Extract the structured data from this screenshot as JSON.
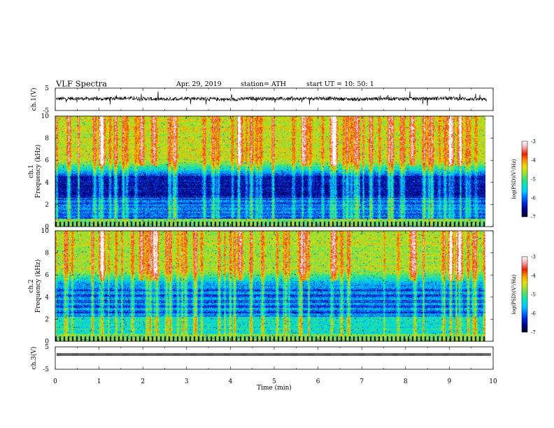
{
  "header": {
    "title": "VLF  Spectra",
    "date": "Apr. 29, 2019",
    "station": "station= ATH",
    "start": "start  UT  =    10: 50: 1"
  },
  "colors": {
    "spectrum": [
      "#000030",
      "#000080",
      "#0020d0",
      "#0070ff",
      "#00c8ff",
      "#00e6c8",
      "#40e070",
      "#a0e030",
      "#e8e000",
      "#ff9000",
      "#e82000",
      "#f3a0a0",
      "#ffffff"
    ],
    "signal_line": "#000000",
    "pulse": "#000000"
  },
  "chart_data": [
    {
      "type": "line",
      "id": "ch1",
      "ylabel": "ch.1(V)",
      "ylim": [
        -5,
        5
      ],
      "yticks": [
        5,
        -5
      ],
      "xlim": [
        0,
        10
      ],
      "signal_end_min": 9.85,
      "series": [
        {
          "x": [
            0,
            0.5,
            1,
            1.5,
            2,
            2.5,
            3,
            3.5,
            4,
            4.5,
            5,
            5.5,
            6,
            6.5,
            7,
            7.5,
            8,
            8.5,
            9,
            9.5,
            9.85
          ],
          "values": [
            0.2,
            0.4,
            0.1,
            0.6,
            0.3,
            0.0,
            0.5,
            0.2,
            -0.1,
            0.4,
            0.3,
            0.1,
            0.5,
            0.2,
            0.0,
            0.4,
            0.2,
            0.3,
            0.5,
            0.1,
            -0.2
          ]
        }
      ]
    },
    {
      "type": "heatmap",
      "id": "ch1-spec",
      "ylabel_top": "ch.1",
      "ylabel": "Frequency  (kHz)",
      "ylim": [
        0,
        10
      ],
      "yticks": [
        0,
        2,
        4,
        6,
        8,
        10
      ],
      "xlim": [
        0,
        10
      ],
      "data_end_min": 9.85,
      "colorbar": {
        "label": "log(PSD)(V²/Hz)",
        "range": [
          -7,
          -3
        ],
        "ticks": [
          -3,
          -4,
          -5,
          -6,
          -7
        ]
      }
    },
    {
      "type": "heatmap",
      "id": "ch2-spec",
      "ylabel_top": "ch.2",
      "ylabel": "Frequency  (kHz)",
      "ylim": [
        0,
        10
      ],
      "yticks": [
        0,
        2,
        4,
        6,
        8,
        10
      ],
      "xlim": [
        0,
        10
      ],
      "data_end_min": 9.85,
      "colorbar": {
        "label": "log(PSD)(V²/Hz)",
        "range": [
          -7,
          -3
        ],
        "ticks": [
          -3,
          -4,
          -5,
          -6,
          -7
        ]
      }
    },
    {
      "type": "line",
      "id": "ch3",
      "ylabel": "ch.3(V)",
      "ylim": [
        -5,
        5
      ],
      "yticks": [
        5,
        -5
      ],
      "xlim": [
        0,
        10
      ],
      "pulse_level_v": 1.6,
      "pulse_period_s": 1.0
    }
  ],
  "xaxis": {
    "label": "Time  (min)",
    "range": [
      0,
      10
    ],
    "ticks": [
      0,
      1,
      2,
      3,
      4,
      5,
      6,
      7,
      8,
      9,
      10
    ]
  }
}
